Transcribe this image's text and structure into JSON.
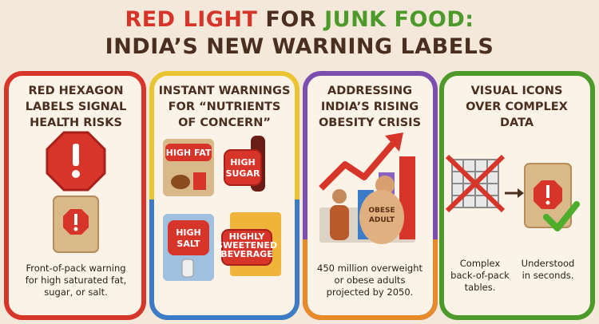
{
  "title": {
    "line1": [
      {
        "text": "RED LIGHT",
        "color": "#d8352a"
      },
      {
        "text": "FOR",
        "color": "#4a2e1f"
      },
      {
        "text": "JUNK FOOD:",
        "color": "#4c9a2a"
      }
    ],
    "line2": "INDIA’S NEW WARNING LABELS"
  },
  "panels": [
    {
      "heading": [
        "RED HEXAGON",
        "LABELS SIGNAL",
        "HEALTH RISKS"
      ],
      "caption": [
        "Front-of-pack warning",
        "for high saturated fat,",
        "sugar, or salt."
      ]
    },
    {
      "heading": [
        "INSTANT WARNINGS",
        "FOR “NUTRIENTS",
        "OF CONCERN”"
      ],
      "labels": [
        [
          "HIGH FAT"
        ],
        [
          "HIGH",
          "SUGAR"
        ],
        [
          "HIGH",
          "SALT"
        ],
        [
          "HIGHLY",
          "SWEETENED",
          "BEVERAGE"
        ]
      ]
    },
    {
      "heading": [
        "ADDRESSING",
        "INDIA’S RISING",
        "OBESITY CRISIS"
      ],
      "figure_label": [
        "OBESE",
        "ADULT"
      ],
      "caption": [
        "450 million overweight",
        "or obese adults",
        "projected by 2050."
      ]
    },
    {
      "heading": [
        "VISUAL ICONS",
        "OVER COMPLEX",
        "DATA"
      ],
      "captions": [
        [
          "Complex",
          "back-of-pack",
          "tables."
        ],
        [
          "Understood",
          "in seconds."
        ]
      ]
    }
  ]
}
